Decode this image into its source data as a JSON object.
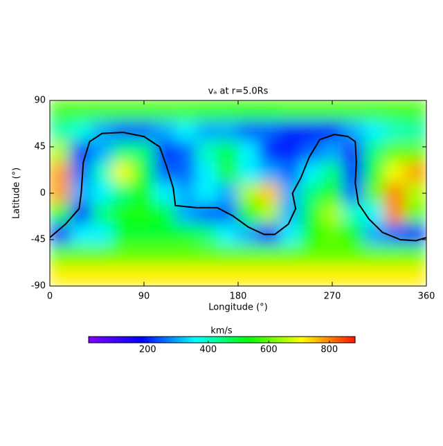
{
  "chart_data": {
    "type": "heatmap",
    "title": "vₐ at r=5.0Rs",
    "xlabel": "Longitude (°)",
    "ylabel": "Latitude (°)",
    "xlim": [
      0,
      360
    ],
    "ylim": [
      -90,
      90
    ],
    "xticks": [
      0,
      90,
      180,
      270,
      360
    ],
    "yticks": [
      90,
      45,
      0,
      -45,
      -90
    ],
    "x": [
      10,
      30,
      50,
      70,
      90,
      110,
      130,
      150,
      170,
      190,
      210,
      230,
      250,
      270,
      290,
      310,
      330,
      350
    ],
    "y": [
      80,
      60,
      40,
      20,
      0,
      -20,
      -40,
      -60,
      -80
    ],
    "values": [
      [
        580,
        580,
        580,
        580,
        580,
        580,
        580,
        570,
        570,
        570,
        570,
        580,
        580,
        580,
        580,
        580,
        580,
        580
      ],
      [
        420,
        380,
        300,
        250,
        250,
        300,
        350,
        300,
        300,
        250,
        250,
        200,
        200,
        200,
        300,
        350,
        400,
        420
      ],
      [
        650,
        200,
        300,
        450,
        450,
        200,
        250,
        400,
        500,
        350,
        200,
        200,
        250,
        300,
        150,
        450,
        600,
        600
      ],
      [
        780,
        250,
        400,
        700,
        500,
        250,
        250,
        350,
        550,
        350,
        300,
        250,
        350,
        450,
        200,
        500,
        700,
        780
      ],
      [
        780,
        300,
        350,
        450,
        550,
        350,
        300,
        350,
        300,
        650,
        750,
        300,
        450,
        550,
        250,
        600,
        800,
        650
      ],
      [
        550,
        200,
        450,
        550,
        550,
        500,
        300,
        250,
        250,
        550,
        650,
        300,
        500,
        650,
        400,
        350,
        800,
        600
      ],
      [
        150,
        350,
        350,
        500,
        500,
        500,
        500,
        450,
        350,
        300,
        150,
        350,
        550,
        600,
        550,
        300,
        250,
        200
      ],
      [
        600,
        600,
        600,
        600,
        600,
        600,
        600,
        600,
        600,
        600,
        600,
        600,
        600,
        600,
        600,
        600,
        600,
        600
      ],
      [
        720,
        720,
        720,
        720,
        720,
        720,
        720,
        720,
        720,
        720,
        720,
        720,
        720,
        720,
        720,
        720,
        720,
        720
      ]
    ],
    "colorscale": [
      "#8000ff",
      "#0000ff",
      "#00ffff",
      "#00ff00",
      "#ffff00",
      "#ff1000"
    ],
    "clim": [
      5,
      885
    ],
    "colorbar": {
      "label": "km/s",
      "ticks": [
        200,
        400,
        600,
        800
      ]
    },
    "contour": {
      "color": "#000000",
      "x": [
        0,
        15,
        28,
        30,
        32,
        38,
        50,
        70,
        90,
        105,
        112,
        118,
        120,
        140,
        160,
        175,
        190,
        205,
        215,
        228,
        235,
        232,
        240,
        248,
        258,
        272,
        285,
        292,
        293,
        292,
        295,
        305,
        318,
        335,
        350,
        360
      ],
      "y": [
        -43,
        -30,
        -15,
        0,
        30,
        50,
        58,
        59,
        55,
        45,
        25,
        5,
        -12,
        -14,
        -14,
        -22,
        -33,
        -40,
        -40,
        -30,
        -15,
        0,
        15,
        35,
        52,
        57,
        55,
        50,
        30,
        10,
        -10,
        -25,
        -38,
        -45,
        -46,
        -43
      ]
    }
  }
}
